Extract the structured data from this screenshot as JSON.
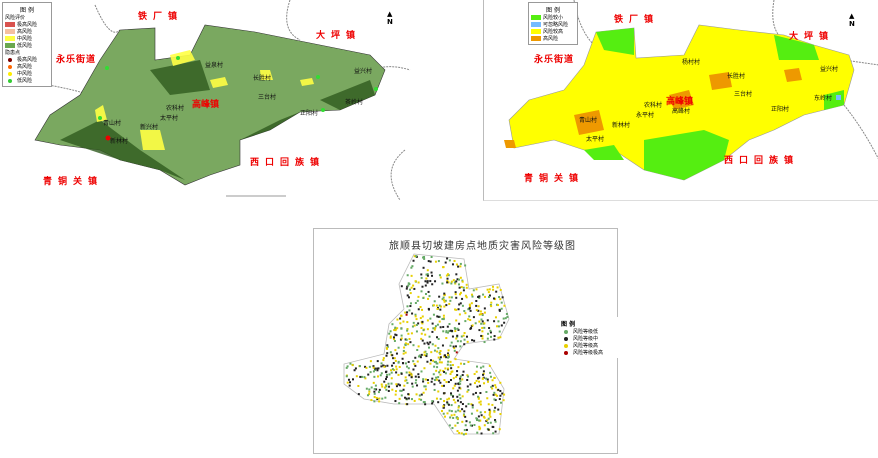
{
  "left_map": {
    "legend_title": "图 例",
    "legend_area_heading": "风险评价",
    "legend_area": [
      {
        "label": "极高风险",
        "color": "#d9534f"
      },
      {
        "label": "高风险",
        "color": "#f4c0a0"
      },
      {
        "label": "中风险",
        "color": "#ffff44"
      },
      {
        "label": "低风险",
        "color": "#6aa84f"
      }
    ],
    "legend_point_heading": "隐患点",
    "legend_points": [
      {
        "label": "极高风险",
        "color": "#7a0000"
      },
      {
        "label": "高风险",
        "color": "#ff6600"
      },
      {
        "label": "中风险",
        "color": "#ffee00"
      },
      {
        "label": "低风险",
        "color": "#33cc33"
      }
    ],
    "towns": [
      "铁厂镇",
      "大坪镇",
      "永乐街道",
      "西口回族镇",
      "青铜关镇"
    ],
    "center_town": "高峰镇",
    "villages": [
      "益泉村",
      "长胜村",
      "三台村",
      "益兴村",
      "茶岭村",
      "正阳村",
      "农科村",
      "太平村",
      "新兴村",
      "青山村",
      "新林村"
    ],
    "north": "N"
  },
  "right_map": {
    "legend_title": "图 例",
    "legend": [
      {
        "label": "风险较小",
        "color": "#55ee11"
      },
      {
        "label": "可忽略风险",
        "color": "#77bbff"
      },
      {
        "label": "风险较高",
        "color": "#ffff00"
      },
      {
        "label": "高风险",
        "color": "#ee9900"
      }
    ],
    "towns": [
      "铁厂镇",
      "大坪镇",
      "永乐街道",
      "西口回族镇",
      "青铜关镇"
    ],
    "center_town": "高峰镇",
    "villages": [
      "杨村村",
      "长胜村",
      "三台村",
      "益兴村",
      "东岭村",
      "正阳村",
      "农科村",
      "高峰村",
      "永平村",
      "青山村",
      "新林村",
      "太平村"
    ],
    "north": "N"
  },
  "bottom_map": {
    "title": "旅顺县切坡建房点地质灾害风险等级图",
    "legend_title": "图 例",
    "legend": [
      {
        "label": "风险等级低",
        "color": "#66aa66"
      },
      {
        "label": "风险等级中",
        "color": "#222222"
      },
      {
        "label": "风险等级高",
        "color": "#e8d000"
      },
      {
        "label": "风险等级极高",
        "color": "#aa0000"
      }
    ]
  }
}
